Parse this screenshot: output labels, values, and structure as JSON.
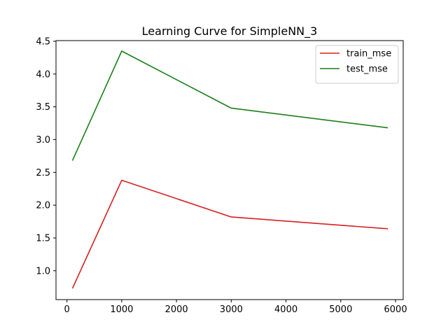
{
  "chart_data": {
    "type": "line",
    "title": "Learning Curve for SimpleNN_3",
    "xlabel": "",
    "ylabel": "",
    "xlim": [
      -200,
      6140
    ],
    "ylim": [
      0.56,
      4.51
    ],
    "x_ticks": [
      0,
      1000,
      2000,
      3000,
      4000,
      5000,
      6000
    ],
    "y_ticks": [
      1.0,
      1.5,
      2.0,
      2.5,
      3.0,
      3.5,
      4.0,
      4.5
    ],
    "grid": false,
    "legend_position": "top-right",
    "x": [
      100,
      1000,
      3000,
      5860
    ],
    "series": [
      {
        "name": "train_mse",
        "color": "#d62020",
        "values": [
          0.73,
          2.38,
          1.82,
          1.64
        ]
      },
      {
        "name": "test_mse",
        "color": "#1a7f1a",
        "values": [
          2.68,
          4.35,
          3.48,
          3.18
        ]
      }
    ]
  }
}
